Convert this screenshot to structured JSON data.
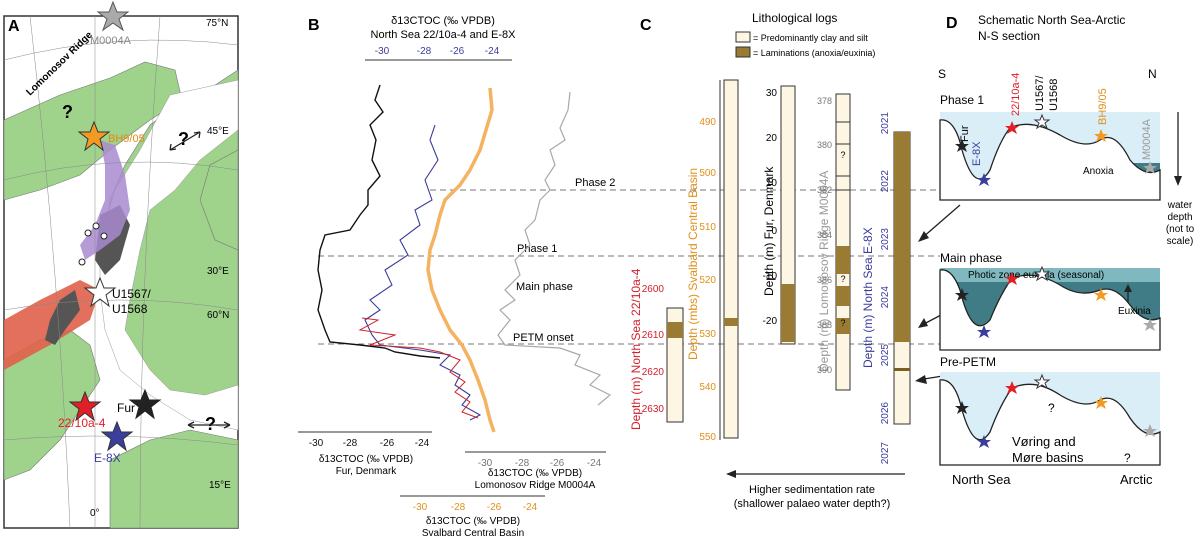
{
  "panels": {
    "a": "A",
    "b": "B",
    "c": "C",
    "d": "D"
  },
  "map": {
    "lat_75": "75°N",
    "lat_45": "45°E",
    "lat_30": "30°E",
    "lat_60": "60°N",
    "lat_15": "15°E",
    "lon_0": "0°",
    "ridge": "Lomonosov Ridge",
    "m0004a": "M0004A",
    "bh905": "BH9/05",
    "u1567": "U1567/",
    "u1568": "U1568",
    "fur": "Fur",
    "s22": "22/10a-4",
    "e8x": "E-8X",
    "q1": "?",
    "q2": "?",
    "q3": "?"
  },
  "panel_b": {
    "top_axis_title": "δ13CTOC (‰ VPDB)",
    "top_axis_subtitle": "North Sea 22/10a-4 and E-8X",
    "top_ticks": [
      "-30",
      "-28",
      "-26",
      "-24"
    ],
    "fur_ticks": [
      "-30",
      "-28",
      "-26",
      "-24"
    ],
    "fur_title": "δ13CTOC (‰ VPDB)",
    "fur_subtitle": "Fur, Denmark",
    "lom_ticks": [
      "-30",
      "-28",
      "-26",
      "-24"
    ],
    "lom_title": "δ13CTOC (‰ VPDB)",
    "lom_subtitle": "Lomonosov Ridge M0004A",
    "sval_ticks": [
      "-30",
      "-28",
      "-26",
      "-24"
    ],
    "sval_title": "δ13CTOC (‰ VPDB)",
    "sval_subtitle": "Svalbard Central Basin",
    "phase2": "Phase 2",
    "phase1": "Phase 1",
    "main_phase": "Main phase",
    "petm_onset": "PETM onset",
    "ns_depth_label": "Depth (m) North Sea 22/10a-4",
    "ns_ticks": [
      "2600",
      "2610",
      "2620",
      "2630"
    ],
    "sval_depth_label": "Depth (mbs) Svalbard Central Basin",
    "sval_depth_ticks": [
      "490",
      "500",
      "510",
      "520",
      "530",
      "540",
      "550"
    ]
  },
  "panel_c": {
    "title": "Lithological logs",
    "legend_clay": "= Predominantly clay and silt",
    "legend_lam": "= Laminations (anoxia/euxinia)",
    "fur_depth_label": "Depth (m) Fur, Denmark",
    "fur_ticks": [
      "30",
      "20",
      "10",
      "0",
      "-10",
      "-20"
    ],
    "lom_depth_label": "Depth (m) Lomonosov Ridge M0004A",
    "lom_ticks": [
      "378",
      "380",
      "382",
      "384",
      "386",
      "388",
      "390"
    ],
    "e8x_depth_label": "Depth (m) North Sea E-8X",
    "e8x_ticks": [
      "2021",
      "2022",
      "2023",
      "2024",
      "2025",
      "2026",
      "2027"
    ],
    "q": "?",
    "arrow_text1": "Higher sedimentation rate",
    "arrow_text2": "(shallower palaeo water depth?)"
  },
  "panel_d": {
    "title1": "Schematic North Sea-Arctic",
    "title2": "N-S section",
    "s": "S",
    "n": "N",
    "phase1": "Phase 1",
    "fur": "Fur",
    "e8x": "E-8X",
    "s22": "22/10a-4",
    "u1567": "U1567/",
    "u1568": "U1568",
    "bh905": "BH9/05",
    "m0004a": "M0004A",
    "anoxia": "Anoxia",
    "wd1": "water",
    "wd2": "depth",
    "wd3": "(not to",
    "wd4": "scale)",
    "main_phase": "Main phase",
    "photic": "Photic zone euxinia (seasonal)",
    "euxinia": "Euxinia",
    "pre_petm": "Pre-PETM",
    "q": "?",
    "voring1": "Vøring and",
    "voring2": "Møre basins",
    "north_sea": "North Sea",
    "arctic": "Arctic"
  },
  "colors": {
    "land": "#9fd38c",
    "ocean": "#ffffff",
    "volcanic": "#e0604a",
    "dark_rock": "#555555",
    "purple": "#a98bd0",
    "star_orange": "#f39a22",
    "star_red": "#e21f26",
    "star_blue": "#3b3f9c",
    "curve_blue": "#3a3c9a",
    "curve_red": "#d0202a",
    "curve_orange": "#f5b261",
    "curve_grey": "#a8a8a8",
    "lamination": "#9a7b33",
    "clay": "#fdf6e3",
    "water_light": "#d9eef7",
    "water_dark": "#3f7c86"
  },
  "chart_data": [
    {
      "type": "line",
      "name": "Fur, Denmark δ13C curve (panel B, black)",
      "xlabel": "δ13CTOC (‰ VPDB)",
      "xlim": [
        -31,
        -22
      ],
      "depth_frac": [
        0.0,
        0.05,
        0.1,
        0.15,
        0.2,
        0.25,
        0.3,
        0.35,
        0.4,
        0.45,
        0.5,
        0.55,
        0.6,
        0.65,
        0.7
      ],
      "values": [
        -24.5,
        -25.0,
        -24.0,
        -25.5,
        -26.0,
        -27.5,
        -29.5,
        -30.5,
        -30.0,
        -30.2,
        -29.8,
        -30.5,
        -30.0,
        -24.5,
        -24.0
      ]
    },
    {
      "type": "line",
      "name": "North Sea 22/10a-4 and E-8X (panel B, blue/red)",
      "xlabel": "δ13CTOC (‰ VPDB)",
      "xlim": [
        -31,
        -23
      ],
      "depth_frac": [
        0.3,
        0.4,
        0.5,
        0.6,
        0.7,
        0.75,
        0.8,
        0.9,
        1.0
      ],
      "values": [
        -25.5,
        -27.0,
        -27.5,
        -28.0,
        -28.5,
        -27.5,
        -26.0,
        -25.5,
        -25.0
      ]
    },
    {
      "type": "line",
      "name": "Svalbard Central Basin (panel B, orange)",
      "xlabel": "δ13CTOC (‰ VPDB)",
      "xlim": [
        -31,
        -23
      ],
      "depth_frac": [
        0.0,
        0.1,
        0.2,
        0.3,
        0.4,
        0.5,
        0.6,
        0.7,
        0.8,
        0.9,
        1.0
      ],
      "values": [
        -24.5,
        -25.0,
        -25.5,
        -26.0,
        -27.0,
        -27.5,
        -28.0,
        -28.5,
        -28.0,
        -27.5,
        -27.0
      ]
    },
    {
      "type": "line",
      "name": "Lomonosov Ridge M0004A (panel B, grey)",
      "xlabel": "δ13CTOC (‰ VPDB)",
      "xlim": [
        -31,
        -23
      ],
      "depth_frac": [
        0.0,
        0.2,
        0.35,
        0.5,
        0.7,
        0.8,
        0.9
      ],
      "values": [
        -24.5,
        -25.0,
        -26.5,
        -27.0,
        -27.5,
        -25.0,
        -24.5
      ]
    }
  ]
}
